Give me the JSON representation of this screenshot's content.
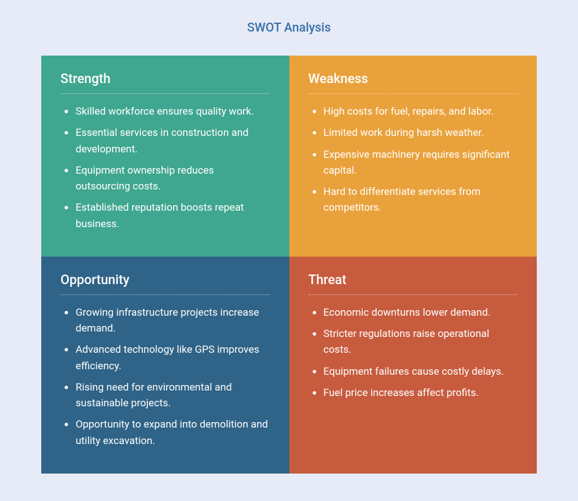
{
  "type": "infographic",
  "background_color": "#e6ebf7",
  "title": {
    "text": "SWOT Analysis",
    "color": "#3a6fa8",
    "fontsize": 18
  },
  "grid": {
    "columns": 2,
    "rows": 2
  },
  "quadrants": [
    {
      "key": "strength",
      "heading": "Strength",
      "background_color": "#3fa68f",
      "text_color": "#ffffff",
      "items": [
        "Skilled workforce ensures quality work.",
        "Essential services in construction and development.",
        "Equipment ownership reduces outsourcing costs.",
        "Established reputation boosts repeat business."
      ]
    },
    {
      "key": "weakness",
      "heading": "Weakness",
      "background_color": "#e9a13b",
      "text_color": "#ffffff",
      "items": [
        "High costs for fuel, repairs, and labor.",
        "Limited work during harsh weather.",
        "Expensive machinery requires significant capital.",
        "Hard to differentiate services from competitors."
      ]
    },
    {
      "key": "opportunity",
      "heading": "Opportunity",
      "background_color": "#2f6387",
      "text_color": "#ffffff",
      "items": [
        "Growing infrastructure projects increase demand.",
        "Advanced technology like GPS improves efficiency.",
        "Rising need for environmental and sustainable projects.",
        "Opportunity to expand into demolition and utility excavation."
      ]
    },
    {
      "key": "threat",
      "heading": "Threat",
      "background_color": "#c75b3e",
      "text_color": "#ffffff",
      "items": [
        "Economic downturns lower demand.",
        "Stricter regulations raise operational costs.",
        "Equipment failures cause costly delays.",
        "Fuel price increases affect profits."
      ]
    }
  ]
}
